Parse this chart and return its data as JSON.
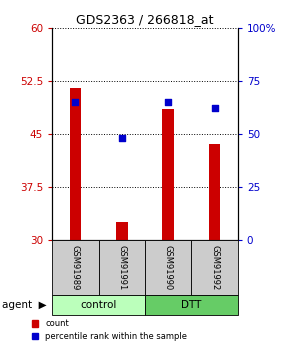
{
  "title": "GDS2363 / 266818_at",
  "samples": [
    "GSM91989",
    "GSM91991",
    "GSM91990",
    "GSM91992"
  ],
  "bar_values": [
    51.5,
    32.5,
    48.5,
    43.5
  ],
  "percentile_values": [
    65.0,
    48.0,
    65.0,
    62.0
  ],
  "bar_color": "#cc0000",
  "dot_color": "#0000cc",
  "ylim_left": [
    30,
    60
  ],
  "ylim_right": [
    0,
    100
  ],
  "yticks_left": [
    30,
    37.5,
    45,
    52.5,
    60
  ],
  "yticks_right": [
    0,
    25,
    50,
    75,
    100
  ],
  "ytick_labels_right": [
    "0",
    "25",
    "50",
    "75",
    "100%"
  ],
  "ytick_labels_left": [
    "30",
    "37.5",
    "45",
    "52.5",
    "60"
  ],
  "control_color": "#bbffbb",
  "dtt_color": "#66cc66",
  "bar_width": 0.25,
  "sample_box_color": "#cccccc",
  "title_fontsize": 9,
  "tick_fontsize": 7.5
}
